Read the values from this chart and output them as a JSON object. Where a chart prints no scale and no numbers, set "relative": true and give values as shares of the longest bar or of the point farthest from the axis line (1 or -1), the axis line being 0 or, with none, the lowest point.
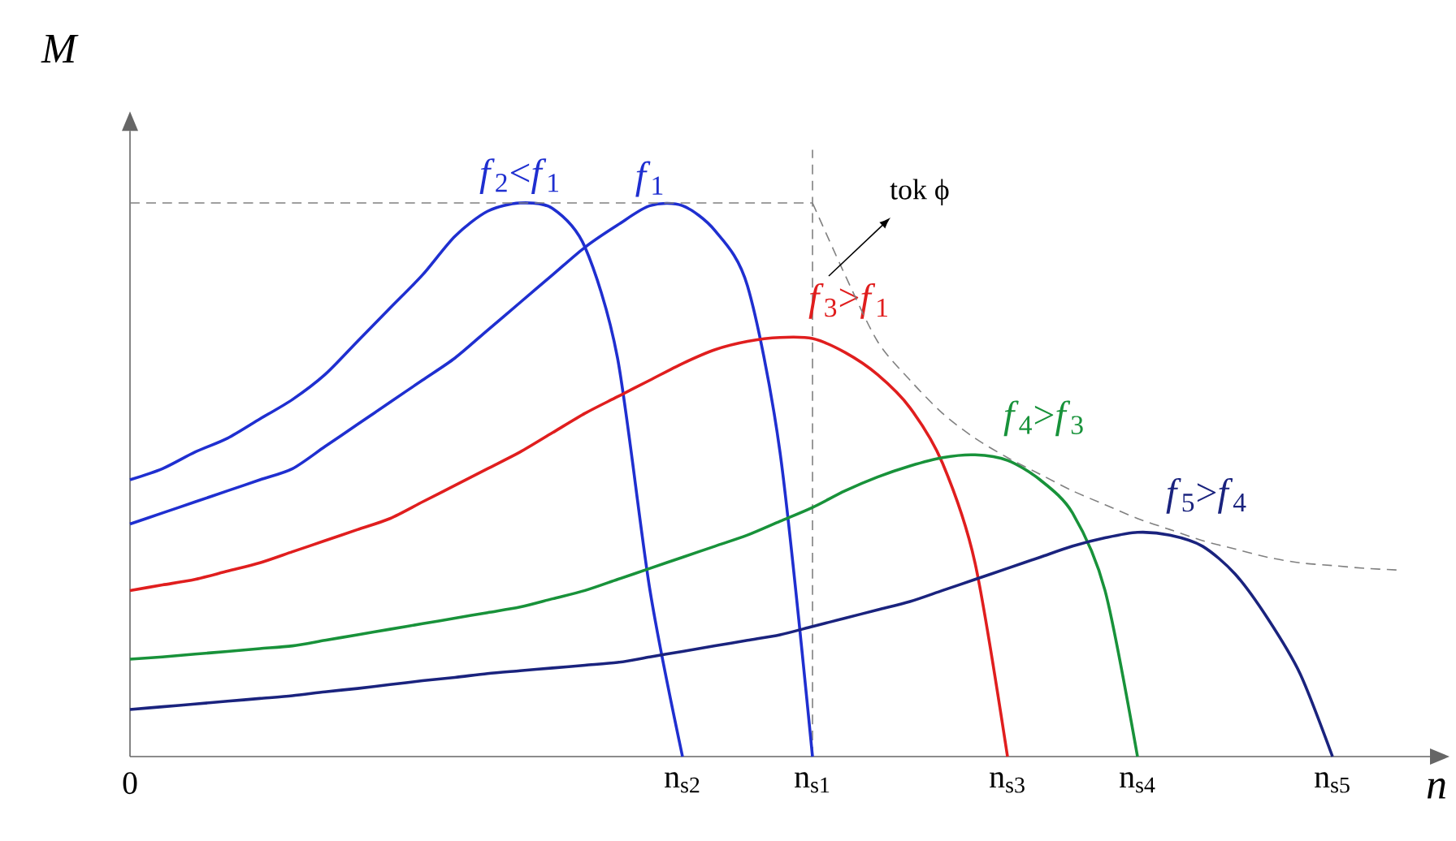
{
  "chart_data": {
    "type": "line",
    "relative": true,
    "xlabel": "n",
    "ylabel": "M",
    "categories": [
      "0",
      null,
      null,
      null,
      null,
      null,
      null,
      null,
      null,
      null,
      null,
      null,
      null,
      null,
      null,
      null,
      null,
      "n$_{s2}$",
      null,
      null,
      null,
      "n$_{s1}$",
      null,
      null,
      null,
      null,
      null,
      "n$_{s3}$",
      null,
      null,
      null,
      "n$_{s4}$",
      null,
      null,
      null,
      null,
      null,
      "n$_{s5}$",
      null,
      null,
      null
    ],
    "annotations": [
      "tok ϕ"
    ],
    "ref_lines": [
      {
        "axis": "x",
        "value": "n$_{s1}$",
        "color": "#808080",
        "line_style": "dashed"
      }
    ],
    "series": [
      {
        "name": "*f*$_{2}$<*f*$_{1}$",
        "color": "#1f2fd0",
        "values": [
          0.5,
          0.52,
          0.55,
          0.575,
          0.61,
          0.645,
          0.69,
          0.75,
          0.81,
          0.87,
          0.94,
          0.985,
          1.0,
          0.99,
          0.92,
          0.72,
          0.3,
          0,
          null,
          null,
          null,
          null,
          null,
          null,
          null,
          null,
          null,
          null,
          null,
          null,
          null,
          null,
          null,
          null,
          null,
          null,
          null,
          null,
          null,
          null,
          null
        ]
      },
      {
        "name": "*f*$_{1}$",
        "color": "#1f2fd0",
        "values": [
          0.42,
          0.44,
          0.46,
          0.48,
          0.5,
          0.52,
          0.56,
          0.6,
          0.64,
          0.68,
          0.72,
          0.77,
          0.82,
          0.87,
          0.92,
          0.96,
          0.995,
          0.995,
          0.95,
          0.85,
          0.55,
          0,
          null,
          null,
          null,
          null,
          null,
          null,
          null,
          null,
          null,
          null,
          null,
          null,
          null,
          null,
          null,
          null,
          null,
          null,
          null
        ]
      },
      {
        "name": "*f*$_{3}$>*f*$_{1}$",
        "color": "#e01e1e",
        "values": [
          0.3,
          0.31,
          0.32,
          0.335,
          0.35,
          0.37,
          0.39,
          0.41,
          0.43,
          0.46,
          0.49,
          0.52,
          0.55,
          0.585,
          0.62,
          0.65,
          0.68,
          0.71,
          0.735,
          0.75,
          0.757,
          0.755,
          0.73,
          0.69,
          0.63,
          0.53,
          0.35,
          0,
          null,
          null,
          null,
          null,
          null,
          null,
          null,
          null,
          null,
          null,
          null,
          null,
          null
        ]
      },
      {
        "name": "*f*$_{4}$>*f*$_{3}$",
        "color": "#18923a",
        "values": [
          0.176,
          0.18,
          0.185,
          0.19,
          0.195,
          0.2,
          0.21,
          0.22,
          0.23,
          0.24,
          0.25,
          0.26,
          0.27,
          0.285,
          0.3,
          0.32,
          0.34,
          0.36,
          0.38,
          0.4,
          0.425,
          0.45,
          0.48,
          0.505,
          0.525,
          0.54,
          0.545,
          0.535,
          0.5,
          0.44,
          0.3,
          0,
          null,
          null,
          null,
          null,
          null,
          null,
          null,
          null,
          null
        ]
      },
      {
        "name": "*f*$_{5}$>*f*$_{4}$",
        "color": "#1a237e",
        "values": [
          0.085,
          0.09,
          0.095,
          0.1,
          0.105,
          0.11,
          0.117,
          0.123,
          0.13,
          0.137,
          0.143,
          0.15,
          0.155,
          0.16,
          0.165,
          0.17,
          0.18,
          0.19,
          0.2,
          0.21,
          0.22,
          0.235,
          0.25,
          0.265,
          0.28,
          0.3,
          0.32,
          0.34,
          0.36,
          0.38,
          0.395,
          0.405,
          0.4,
          0.38,
          0.33,
          0.25,
          0.15,
          0,
          null,
          null,
          null
        ]
      },
      {
        "color": "#808080",
        "line_style": "dashed",
        "values": [
          1,
          1,
          1,
          1,
          1,
          1,
          1,
          1,
          1,
          1,
          1,
          1,
          1,
          1,
          1,
          1,
          1,
          1,
          1,
          1,
          1,
          1,
          null,
          null,
          null,
          null,
          null,
          null,
          null,
          null,
          null,
          null,
          null,
          null,
          null,
          null,
          null,
          null,
          null,
          null,
          null
        ]
      },
      {
        "color": "#808080",
        "line_style": "dashed",
        "values": [
          null,
          null,
          null,
          null,
          null,
          null,
          null,
          null,
          null,
          null,
          null,
          null,
          null,
          null,
          null,
          null,
          null,
          null,
          null,
          null,
          null,
          1.0,
          0.87,
          0.75,
          0.68,
          0.62,
          0.575,
          0.54,
          0.51,
          0.48,
          0.455,
          0.43,
          0.41,
          0.39,
          0.375,
          0.36,
          0.35,
          0.345,
          0.34,
          0.337,
          null
        ]
      }
    ]
  }
}
